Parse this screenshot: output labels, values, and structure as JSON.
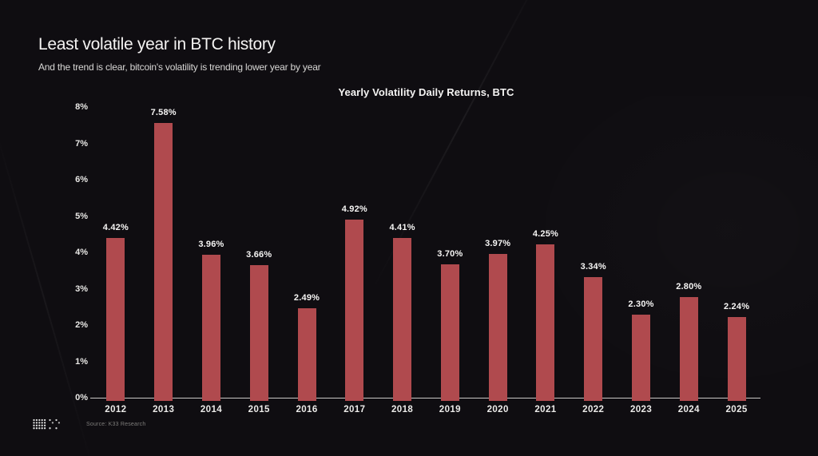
{
  "header": {
    "title": "Least volatile year in BTC history",
    "subtitle": "And the trend is clear, bitcoin's volatility is trending lower year by year"
  },
  "chart_data": {
    "type": "bar",
    "title": "Yearly Volatility Daily Returns, BTC",
    "categories": [
      "2012",
      "2013",
      "2014",
      "2015",
      "2016",
      "2017",
      "2018",
      "2019",
      "2020",
      "2021",
      "2022",
      "2023",
      "2024",
      "2025"
    ],
    "values": [
      4.42,
      7.58,
      3.96,
      3.66,
      2.49,
      4.92,
      4.41,
      3.7,
      3.97,
      4.25,
      3.34,
      2.3,
      2.8,
      2.24
    ],
    "value_labels": [
      "4.42%",
      "7.58%",
      "3.96%",
      "3.66%",
      "2.49%",
      "4.92%",
      "4.41%",
      "3.70%",
      "3.97%",
      "4.25%",
      "3.34%",
      "2.30%",
      "2.80%",
      "2.24%"
    ],
    "yticks": [
      "8%",
      "7%",
      "6%",
      "5%",
      "4%",
      "3%",
      "2%",
      "1%",
      "0%"
    ],
    "ylim": [
      0,
      8
    ],
    "xlabel": "",
    "ylabel": "",
    "grid": false,
    "legend": "none",
    "bar_color": "#b04a4e",
    "background_color": "#0f0d11",
    "label_color": "#f6f5f4"
  },
  "footer": {
    "logo_icon": "k33-dot-matrix-logo",
    "source": "Source: K33 Research"
  }
}
